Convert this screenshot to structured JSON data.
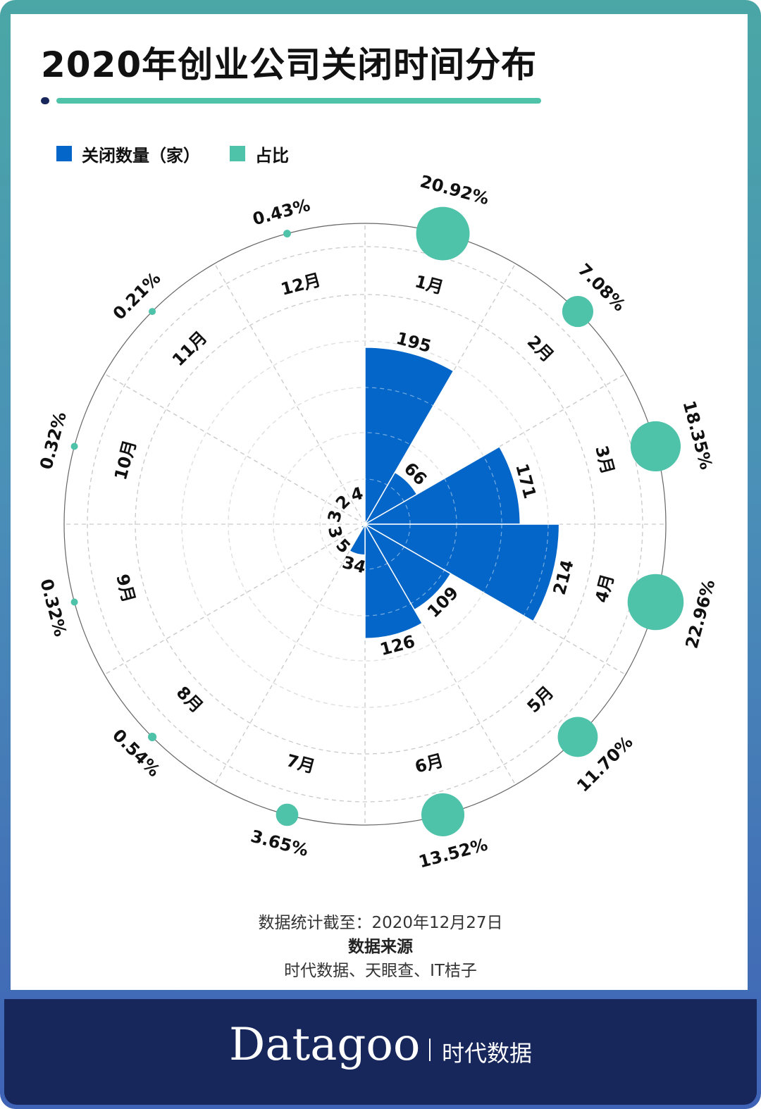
{
  "title": "2020年创业公司关闭时间分布",
  "legend": [
    {
      "label": "关闭数量（家）",
      "color": "#0466c8"
    },
    {
      "label": "占比",
      "color": "#4fc2aa"
    }
  ],
  "notes": {
    "cutoff": "数据统计截至：2020年12月27日",
    "source_title": "数据来源",
    "source": "时代数据、天眼查、IT桔子"
  },
  "brand": {
    "name": "Datagoo",
    "cn": "时代数据"
  },
  "chart_data": {
    "type": "polar-bar",
    "categories": [
      "1月",
      "2月",
      "3月",
      "4月",
      "5月",
      "6月",
      "7月",
      "8月",
      "9月",
      "10月",
      "11月",
      "12月"
    ],
    "series": [
      {
        "name": "关闭数量（家）",
        "values": [
          195,
          66,
          171,
          214,
          109,
          126,
          34,
          5,
          3,
          3,
          2,
          4
        ],
        "color": "#0466c8"
      },
      {
        "name": "占比",
        "values": [
          20.92,
          7.08,
          18.35,
          22.96,
          11.7,
          13.52,
          3.65,
          0.54,
          0.32,
          0.32,
          0.21,
          0.43
        ],
        "labels": [
          "20.92%",
          "7.08%",
          "18.35%",
          "22.96%",
          "11.70%",
          "13.52%",
          "3.65%",
          "0.54%",
          "0.32%",
          "0.32%",
          "0.21%",
          "0.43%"
        ],
        "color": "#4fc2aa"
      }
    ],
    "radial_max": 250,
    "grid": true,
    "legend_position": "top-left"
  }
}
